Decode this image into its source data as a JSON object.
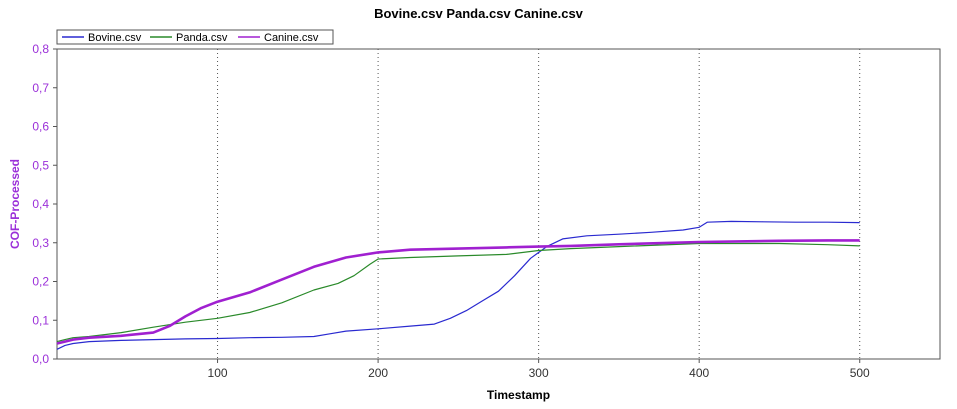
{
  "chart_data": {
    "type": "line",
    "title": "Bovine.csv  Panda.csv  Canine.csv",
    "xlabel": "Timestamp",
    "ylabel": "COF-Processed",
    "xlim": [
      0,
      550
    ],
    "ylim": [
      0,
      0.8
    ],
    "xticks": [
      100,
      200,
      300,
      400,
      500
    ],
    "yticks": [
      0.0,
      0.1,
      0.2,
      0.3,
      0.4,
      0.5,
      0.6,
      0.7,
      0.8
    ],
    "xtick_labels": [
      "100",
      "200",
      "300",
      "400",
      "500"
    ],
    "ytick_labels": [
      "0,0",
      "0,1",
      "0,2",
      "0,3",
      "0,4",
      "0,5",
      "0,6",
      "0,7",
      "0,8"
    ],
    "grid": "vertical dotted",
    "legend_position": "top-left",
    "series": [
      {
        "name": "Bovine.csv",
        "color": "#2a2ad0",
        "x": [
          0,
          5,
          10,
          20,
          40,
          60,
          80,
          100,
          120,
          140,
          160,
          170,
          180,
          200,
          220,
          235,
          245,
          255,
          265,
          275,
          285,
          295,
          305,
          315,
          330,
          350,
          370,
          390,
          400,
          405,
          420,
          440,
          460,
          480,
          500
        ],
        "y": [
          0.025,
          0.035,
          0.04,
          0.045,
          0.048,
          0.05,
          0.052,
          0.053,
          0.055,
          0.056,
          0.058,
          0.065,
          0.072,
          0.078,
          0.085,
          0.09,
          0.105,
          0.125,
          0.15,
          0.175,
          0.215,
          0.26,
          0.29,
          0.31,
          0.318,
          0.322,
          0.327,
          0.333,
          0.34,
          0.353,
          0.355,
          0.354,
          0.353,
          0.353,
          0.352
        ]
      },
      {
        "name": "Panda.csv",
        "color": "#2a8a2a",
        "x": [
          0,
          5,
          10,
          20,
          40,
          60,
          80,
          100,
          120,
          140,
          160,
          175,
          185,
          195,
          200,
          220,
          250,
          280,
          300,
          320,
          350,
          400,
          450,
          480,
          500
        ],
        "y": [
          0.045,
          0.05,
          0.055,
          0.058,
          0.068,
          0.082,
          0.095,
          0.105,
          0.12,
          0.145,
          0.178,
          0.195,
          0.215,
          0.245,
          0.258,
          0.262,
          0.266,
          0.27,
          0.28,
          0.285,
          0.29,
          0.298,
          0.298,
          0.295,
          0.292
        ]
      },
      {
        "name": "Canine.csv",
        "color": "#a020d0",
        "x": [
          0,
          5,
          10,
          20,
          40,
          60,
          70,
          80,
          90,
          100,
          120,
          140,
          160,
          180,
          200,
          220,
          250,
          280,
          300,
          320,
          350,
          400,
          450,
          480,
          500
        ],
        "y": [
          0.04,
          0.045,
          0.05,
          0.055,
          0.06,
          0.068,
          0.085,
          0.11,
          0.132,
          0.148,
          0.172,
          0.205,
          0.238,
          0.262,
          0.275,
          0.282,
          0.285,
          0.288,
          0.29,
          0.292,
          0.296,
          0.302,
          0.305,
          0.306,
          0.306
        ]
      }
    ]
  }
}
